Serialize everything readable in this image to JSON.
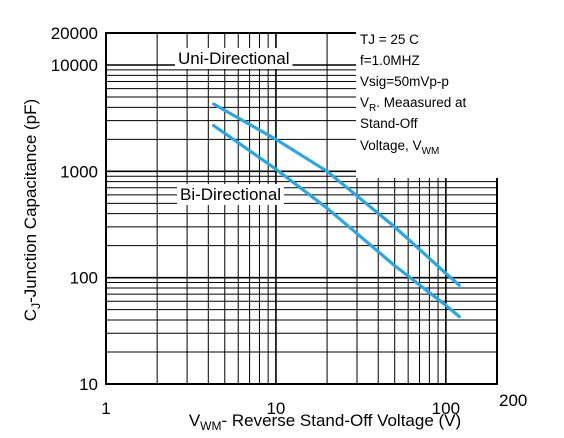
{
  "chart_data": {
    "type": "line",
    "xscale": "log",
    "yscale": "log",
    "xlim": [
      1,
      200
    ],
    "ylim": [
      10,
      20000
    ],
    "grid": true,
    "xlabel": {
      "main": "V",
      "sub": "WM",
      "rest": "- Reverse Stand-Off Voltage (V)"
    },
    "ylabel": {
      "main": "C",
      "sub": "J",
      "rest": "-Junction Capacitance (pF)"
    },
    "x_ticks": [
      {
        "value": 1,
        "label": "1"
      },
      {
        "value": 10,
        "label": "10"
      },
      {
        "value": 100,
        "label": "100"
      },
      {
        "value": 200,
        "label": "200"
      }
    ],
    "y_ticks": [
      {
        "value": 10,
        "label": "10"
      },
      {
        "value": 100,
        "label": "100"
      },
      {
        "value": 1000,
        "label": "1000"
      },
      {
        "value": 10000,
        "label": "10000"
      },
      {
        "value": 20000,
        "label": "20000"
      }
    ],
    "series": [
      {
        "name": "Uni-Directional",
        "color": "#2aa7e0",
        "x": [
          4.3,
          10,
          20,
          50,
          100,
          120
        ],
        "y": [
          4300,
          2000,
          1000,
          300,
          110,
          85
        ]
      },
      {
        "name": "Bi-Directional",
        "color": "#2aa7e0",
        "x": [
          4.3,
          10,
          20,
          50,
          100,
          120
        ],
        "y": [
          2700,
          1050,
          450,
          130,
          55,
          43
        ]
      }
    ],
    "series_labels": [
      {
        "text": "Uni-Directional",
        "series": 0
      },
      {
        "text": "Bi-Directional",
        "series": 1
      }
    ],
    "annotations": [
      {
        "text": "TJ = 25 C"
      },
      {
        "text": "f=1.0MHZ"
      },
      {
        "text": "Vsig=50mVp-p"
      },
      {
        "main": "V",
        "sub": "R",
        "rest": ". Meaasured at"
      },
      {
        "text": "Stand-Off"
      },
      {
        "main": "Voltage, V",
        "sub": "WM",
        "rest": ""
      }
    ]
  }
}
